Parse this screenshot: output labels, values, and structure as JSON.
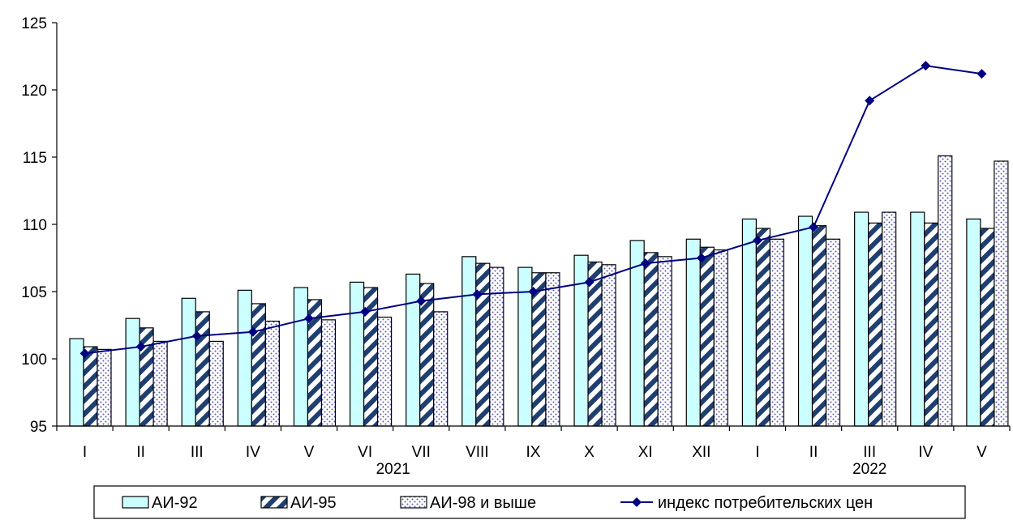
{
  "chart_data": {
    "type": "bar",
    "categories": [
      "I",
      "II",
      "III",
      "IV",
      "V",
      "VI",
      "VII",
      "VIII",
      "IX",
      "X",
      "XI",
      "XII",
      "I",
      "II",
      "III",
      "IV",
      "V"
    ],
    "year_labels": [
      "2021",
      "2022"
    ],
    "series": [
      {
        "name": "АИ-92",
        "type": "bar",
        "values": [
          101.5,
          103.0,
          104.5,
          105.1,
          105.3,
          105.7,
          106.3,
          107.6,
          106.8,
          107.7,
          108.8,
          108.9,
          110.4,
          110.6,
          110.9,
          110.9,
          110.4
        ]
      },
      {
        "name": "АИ-95",
        "type": "bar",
        "values": [
          100.9,
          102.3,
          103.5,
          104.1,
          104.4,
          105.3,
          105.6,
          107.1,
          106.4,
          107.2,
          107.9,
          108.3,
          109.7,
          109.9,
          110.1,
          110.1,
          109.7
        ]
      },
      {
        "name": "АИ-98 и выше",
        "type": "bar",
        "values": [
          100.7,
          101.3,
          101.3,
          102.8,
          102.9,
          103.1,
          103.5,
          106.8,
          106.4,
          107.0,
          107.6,
          108.1,
          108.9,
          108.9,
          110.9,
          115.1,
          114.7
        ]
      },
      {
        "name": "индекс потребительских цен",
        "type": "line",
        "values": [
          100.4,
          100.9,
          101.7,
          102.0,
          103.0,
          103.5,
          104.3,
          104.8,
          105.0,
          105.7,
          107.1,
          107.5,
          108.8,
          109.8,
          119.2,
          121.8,
          121.2
        ]
      }
    ],
    "ylim": [
      95,
      125
    ],
    "yticks": [
      95,
      100,
      105,
      110,
      115,
      120,
      125
    ],
    "legend_position": "bottom",
    "colors": {
      "ai92_fill": "#ccffff",
      "ai95_stripe": "#1f3f6f",
      "ai98_dots": "#5a5aa8",
      "cpi_line": "#000080"
    }
  }
}
